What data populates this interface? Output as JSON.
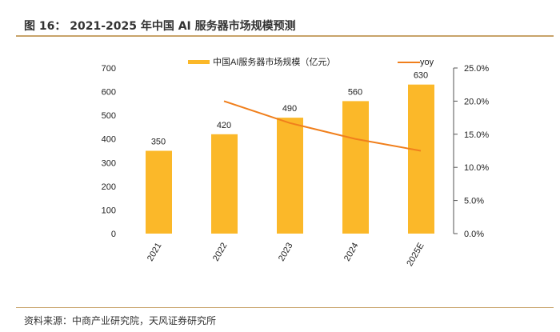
{
  "title": "图 16：  2021-2025 年中国 AI 服务器市场规模预测",
  "source": "资料来源：中商产业研究院，天风证券研究所",
  "chart_data": {
    "type": "bar+line",
    "categories": [
      "2021",
      "2022",
      "2023",
      "2024",
      "2025E"
    ],
    "series": [
      {
        "name": "中国AI服务器市场规模（亿元）",
        "type": "bar",
        "axis": "left",
        "color": "#fbb829",
        "values": [
          350,
          420,
          490,
          560,
          630
        ]
      },
      {
        "name": "yoy",
        "type": "line",
        "axis": "right",
        "color": "#f07f1c",
        "values": [
          null,
          20.0,
          16.7,
          14.3,
          12.5
        ]
      }
    ],
    "left_axis": {
      "ylim": [
        0,
        700
      ],
      "ticks": [
        0,
        100,
        200,
        300,
        400,
        500,
        600,
        700
      ]
    },
    "right_axis": {
      "ylim": [
        0,
        25
      ],
      "ticks": [
        "0.0%",
        "5.0%",
        "10.0%",
        "15.0%",
        "20.0%",
        "25.0%"
      ]
    },
    "data_labels": [
      "350",
      "420",
      "490",
      "560",
      "630"
    ],
    "legend": "top",
    "grid": false
  }
}
